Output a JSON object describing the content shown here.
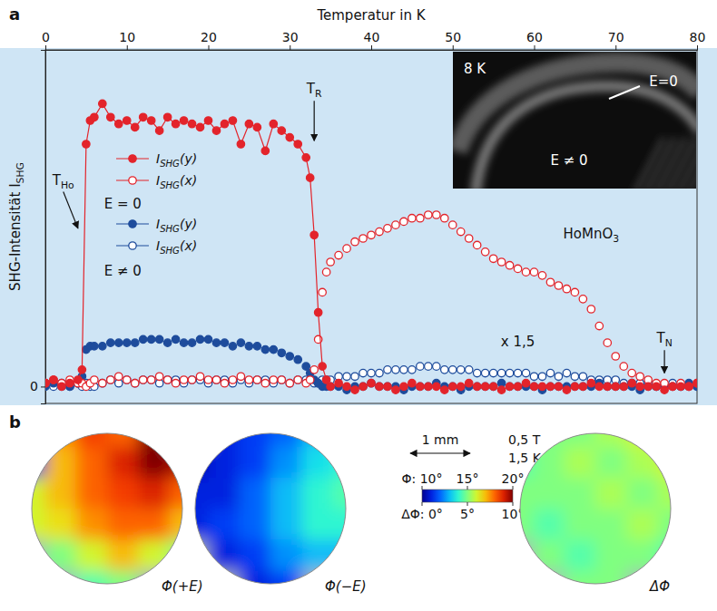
{
  "chart_data": [
    {
      "type": "scatter",
      "panel": "a",
      "xlabel": "Temperatur in K",
      "ylabel": "SHG-Intensität ISHG",
      "x": [
        0,
        1,
        2,
        3,
        4,
        4.5,
        5,
        5.5,
        6,
        7,
        8,
        9,
        10,
        11,
        12,
        13,
        14,
        15,
        16,
        17,
        18,
        19,
        20,
        21,
        22,
        23,
        24,
        25,
        26,
        27,
        28,
        29,
        30,
        31,
        32,
        32.5,
        33,
        33.5,
        34,
        34.5,
        35,
        36,
        37,
        38,
        39,
        40,
        41,
        42,
        43,
        44,
        45,
        46,
        47,
        48,
        49,
        50,
        51,
        52,
        53,
        54,
        55,
        56,
        57,
        58,
        59,
        60,
        61,
        62,
        63,
        64,
        65,
        66,
        67,
        68,
        69,
        70,
        71,
        72,
        73,
        74,
        75,
        76,
        77,
        78,
        79,
        80
      ],
      "xlim": [
        0,
        80
      ],
      "xticks": [
        0,
        10,
        20,
        30,
        40,
        50,
        60,
        70,
        80
      ],
      "ylim": [
        -0.05,
        1
      ],
      "yticks": [
        0
      ],
      "legend": "left",
      "series": [
        {
          "name": "ISHG(y)",
          "color": "#e3242b",
          "marker": "circle-filled",
          "line_style": "solid",
          "values": [
            0.01,
            0.02,
            0,
            0.01,
            0.02,
            0.05,
            0.72,
            0.79,
            0.8,
            0.84,
            0.8,
            0.78,
            0.79,
            0.77,
            0.8,
            0.79,
            0.76,
            0.8,
            0.78,
            0.79,
            0.78,
            0.77,
            0.79,
            0.76,
            0.78,
            0.79,
            0.72,
            0.78,
            0.77,
            0.7,
            0.78,
            0.76,
            0.74,
            0.72,
            0.68,
            0.62,
            0.45,
            0.22,
            0.06,
            0.02,
            0,
            0.01,
            0,
            -0.01,
            0,
            0.01,
            0,
            0,
            -0.01,
            0,
            0.01,
            0,
            0,
            0,
            -0.01,
            0,
            0,
            0.01,
            0,
            0,
            0,
            -0.01,
            0,
            0,
            0.01,
            0,
            0,
            0,
            0,
            -0.01,
            0,
            0,
            0.01,
            0,
            0,
            0,
            0,
            0.01,
            0,
            0,
            0,
            -0.01,
            0,
            0,
            0,
            0.01
          ]
        },
        {
          "name": "ISHG(x)",
          "color": "#e3242b",
          "marker": "circle-open",
          "values": [
            0.01,
            0.02,
            0.01,
            0.02,
            0.01,
            0.01,
            0,
            0.01,
            0.02,
            0.01,
            0.02,
            0.03,
            0.02,
            0.01,
            0.02,
            0.02,
            0.03,
            0.02,
            0.01,
            0.02,
            0.02,
            0.03,
            0.02,
            0.02,
            0.01,
            0.02,
            0.03,
            0.02,
            0.02,
            0.01,
            0.02,
            0.02,
            0.01,
            0.02,
            0.01,
            0.02,
            0.05,
            0.14,
            0.28,
            0.34,
            0.37,
            0.39,
            0.41,
            0.43,
            0.44,
            0.45,
            0.46,
            0.47,
            0.48,
            0.49,
            0.5,
            0.5,
            0.51,
            0.51,
            0.5,
            0.48,
            0.46,
            0.44,
            0.42,
            0.4,
            0.38,
            0.37,
            0.36,
            0.35,
            0.34,
            0.34,
            0.33,
            0.31,
            0.3,
            0.29,
            0.28,
            0.26,
            0.23,
            0.18,
            0.13,
            0.09,
            0.06,
            0.04,
            0.03,
            0.02,
            0.01,
            0.01,
            0,
            0.01,
            0,
            0.01
          ]
        },
        {
          "name": "ISHG(y)",
          "color": "#1e4c9c",
          "marker": "circle-filled",
          "values": [
            0,
            0.01,
            0,
            0,
            0.01,
            0.03,
            0.11,
            0.12,
            0.12,
            0.12,
            0.13,
            0.13,
            0.13,
            0.13,
            0.14,
            0.14,
            0.14,
            0.13,
            0.14,
            0.13,
            0.13,
            0.14,
            0.14,
            0.13,
            0.13,
            0.12,
            0.13,
            0.12,
            0.12,
            0.11,
            0.11,
            0.1,
            0.09,
            0.08,
            0.06,
            0.04,
            0.02,
            0.01,
            0,
            0,
            0,
            0,
            -0.01,
            0,
            0,
            0.01,
            0,
            0,
            0,
            -0.01,
            0,
            0,
            0,
            0.01,
            0,
            0,
            -0.01,
            0,
            0,
            0,
            0,
            0.01,
            0,
            0,
            0,
            0,
            -0.01,
            0,
            0,
            0,
            0,
            0,
            0,
            0.01,
            0,
            0,
            0,
            0,
            -0.01,
            0,
            0,
            0,
            0,
            0,
            0.01,
            0
          ]
        },
        {
          "name": "ISHG(x)",
          "color": "#1e4c9c",
          "marker": "circle-open",
          "values": [
            0.01,
            0,
            0.01,
            0,
            0.01,
            0,
            0.01,
            0,
            0,
            0.01,
            0.02,
            0.01,
            0.02,
            0.01,
            0.02,
            0.02,
            0.01,
            0.02,
            0.02,
            0.01,
            0.02,
            0.02,
            0.01,
            0.02,
            0.02,
            0.01,
            0.02,
            0.01,
            0.02,
            0.02,
            0.01,
            0.02,
            0.01,
            0.02,
            0.02,
            0.02,
            0.01,
            0.01,
            0.02,
            0.02,
            0.02,
            0.03,
            0.03,
            0.03,
            0.04,
            0.04,
            0.04,
            0.05,
            0.05,
            0.05,
            0.05,
            0.06,
            0.06,
            0.06,
            0.05,
            0.05,
            0.05,
            0.05,
            0.04,
            0.04,
            0.04,
            0.04,
            0.04,
            0.04,
            0.04,
            0.03,
            0.03,
            0.04,
            0.03,
            0.04,
            0.03,
            0.03,
            0.02,
            0.02,
            0.02,
            0.02,
            0.01,
            0.01,
            0.01,
            0.01,
            0,
            0,
            0.01,
            0,
            0,
            0
          ]
        }
      ],
      "annotations": [
        {
          "text": "E = 0",
          "x": 9.5,
          "y": 0.53
        },
        {
          "text": "E ≠ 0",
          "x": 9.5,
          "y": 0.33
        },
        {
          "text": "TR",
          "x": 33,
          "y": 0.87,
          "xy": [
            33,
            0.73
          ]
        },
        {
          "text": "THo",
          "x": 2.2,
          "y": 0.6,
          "xy": [
            4,
            0.47
          ]
        },
        {
          "text": "TN",
          "x": 76,
          "y": 0.13,
          "xy": [
            76,
            0.04
          ]
        },
        {
          "text": "HoMnO3",
          "x": 67,
          "y": 0.44
        },
        {
          "text": "x 1,5",
          "x": 58,
          "y": 0.12
        }
      ],
      "inset": {
        "labels": [
          "8 K",
          "E=0",
          "E ≠ 0"
        ]
      }
    },
    {
      "type": "heatmap",
      "panel": "b",
      "scale_bar": "1 mm",
      "notes": [
        "0,5 T",
        "1,5 K"
      ],
      "colorbar": {
        "axes": [
          {
            "side": "top",
            "range": [
              10,
              20
            ],
            "ticks": [
              {
                "value": 10,
                "label": "Φ: 10°"
              },
              {
                "value": 15,
                "label": "15°"
              },
              {
                "value": 20,
                "label": "20°"
              }
            ]
          },
          {
            "side": "bottom",
            "range": [
              0,
              10
            ],
            "ticks": [
              {
                "value": 0,
                "label": "ΔΦ: 0°"
              },
              {
                "value": 5,
                "label": "5°"
              },
              {
                "value": 10,
                "label": "10°"
              }
            ]
          }
        ]
      },
      "maps": [
        {
          "label": "Φ(+E)",
          "axis": "top",
          "cells": [
            [
              null,
              17.5,
              18.5,
              18,
              20,
              null
            ],
            [
              11,
              17,
              18,
              19,
              20,
              19.5
            ],
            [
              16,
              17,
              18,
              18.5,
              19,
              18
            ],
            [
              16,
              16.5,
              17.5,
              18,
              18,
              17
            ],
            [
              null,
              15,
              16,
              17,
              16,
              15
            ],
            [
              null,
              null,
              14.5,
              15,
              null,
              null
            ]
          ]
        },
        {
          "label": "Φ(−E)",
          "axis": "top",
          "cells": [
            [
              null,
              11,
              11.5,
              12,
              13,
              null
            ],
            [
              10.5,
              11,
              11.5,
              12.5,
              13.5,
              14
            ],
            [
              11,
              11,
              12,
              13,
              14,
              14.5
            ],
            [
              11,
              11.5,
              12,
              13,
              14,
              14
            ],
            [
              null,
              11,
              11.5,
              12.5,
              13,
              13
            ],
            [
              null,
              null,
              11,
              11.5,
              null,
              null
            ]
          ]
        },
        {
          "label": "ΔΦ",
          "axis": "bottom",
          "cells": [
            [
              null,
              5,
              5,
              5.5,
              6,
              null
            ],
            [
              4.5,
              5,
              5.5,
              5,
              5.5,
              6
            ],
            [
              5,
              5,
              5,
              5.5,
              5,
              5.5
            ],
            [
              5,
              4.5,
              5,
              5,
              5.5,
              5
            ],
            [
              null,
              5,
              4.5,
              5,
              5,
              4.5
            ],
            [
              null,
              null,
              5,
              5,
              null,
              null
            ]
          ]
        }
      ]
    }
  ]
}
